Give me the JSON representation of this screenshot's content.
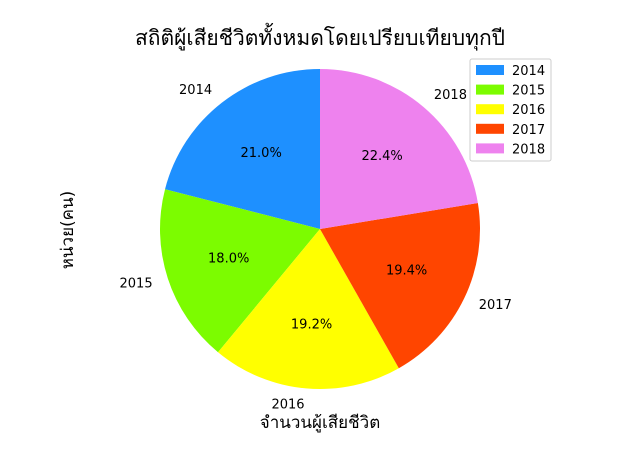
{
  "chart_data": {
    "type": "pie",
    "title": "สถิติผู้เสียชีวิตทั้งหมดโดยเปรียบเทียบทุกปี",
    "xlabel": "จำนวนผู้เสียชีวิต",
    "ylabel": "หน่วย(คน)",
    "categories": [
      "2014",
      "2015",
      "2016",
      "2017",
      "2018"
    ],
    "values": [
      21.0,
      18.0,
      19.2,
      19.4,
      22.4
    ],
    "value_labels": [
      "21.0%",
      "18.0%",
      "19.2%",
      "19.4%",
      "22.4%"
    ],
    "colors": [
      "#1e90ff",
      "#7cfc00",
      "#ffff00",
      "#ff4500",
      "#ee82ee"
    ],
    "start_angle_deg": 90,
    "direction": "counterclockwise",
    "legend": {
      "placement": "upper-right",
      "entries": [
        "2014",
        "2015",
        "2016",
        "2017",
        "2018"
      ]
    }
  }
}
